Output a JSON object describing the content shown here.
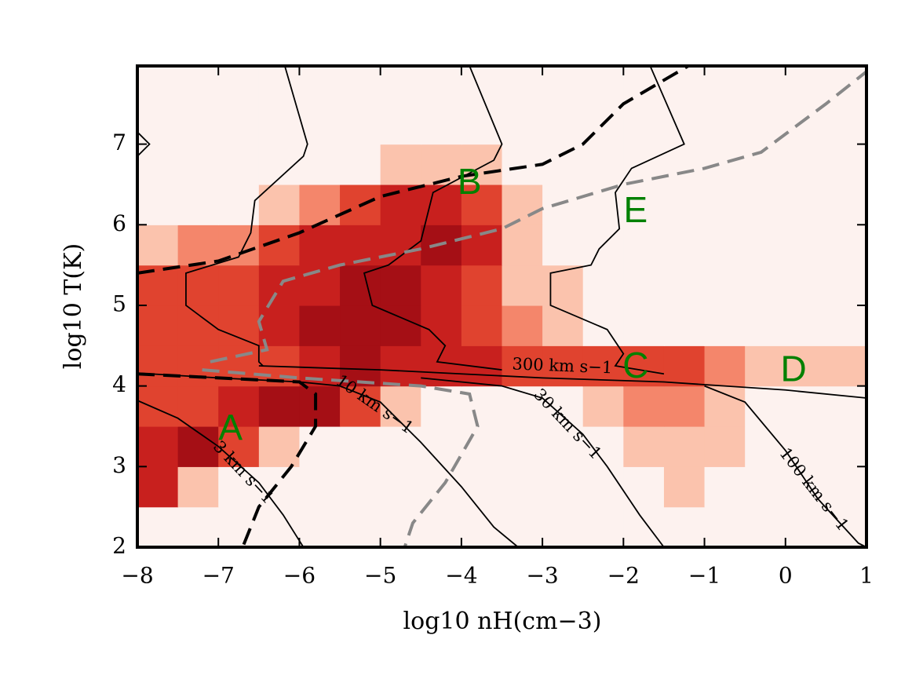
{
  "chart_data": {
    "type": "histogram2d",
    "x_label": "log10 nH(cm−3)",
    "y_label": "log10 T(K)",
    "xlim": [
      -8,
      1
    ],
    "ylim": [
      2,
      7.97
    ],
    "xticks": [
      {
        "value": -8,
        "label": "−8"
      },
      {
        "value": -7,
        "label": "−7"
      },
      {
        "value": -6,
        "label": "−6"
      },
      {
        "value": -5,
        "label": "−5"
      },
      {
        "value": -4,
        "label": "−4"
      },
      {
        "value": -3,
        "label": "−3"
      },
      {
        "value": -2,
        "label": "−2"
      },
      {
        "value": -1,
        "label": "−1"
      },
      0,
      1
    ],
    "yticks": [
      2,
      3,
      4,
      5,
      6,
      7
    ],
    "heatmap": {
      "colors": [
        "#fdf2ef",
        "#fbc3ad",
        "#f4866b",
        "#e0432f",
        "#c8201e",
        "#a50f15"
      ],
      "xbins": [
        -8,
        -7.5,
        -7,
        -6.5,
        -6,
        -5.5,
        -5,
        -4.5,
        -4,
        -3.5,
        -3,
        -2.5,
        -2,
        -1.5,
        -1,
        -0.5,
        0,
        0.5,
        1
      ],
      "ybins": [
        2,
        2.5,
        3,
        3.5,
        4,
        4.5,
        5,
        5.5,
        6,
        6.5,
        7,
        7.5,
        8
      ],
      "z": [
        [
          0,
          0,
          0,
          0,
          0,
          0,
          0,
          0,
          0,
          0,
          0,
          0,
          0,
          0,
          0,
          0,
          0,
          0
        ],
        [
          4,
          1,
          0,
          0,
          0,
          0,
          0,
          0,
          0,
          0,
          0,
          0,
          0,
          1,
          0,
          0,
          0,
          0
        ],
        [
          4,
          5,
          3,
          1,
          0,
          0,
          0,
          0,
          0,
          0,
          0,
          0,
          1,
          1,
          1,
          0,
          0,
          0
        ],
        [
          3,
          3,
          4,
          5,
          5,
          3,
          1,
          0,
          0,
          0,
          0,
          1,
          2,
          2,
          1,
          0,
          0,
          0
        ],
        [
          3,
          3,
          3,
          3,
          4,
          5,
          4,
          4,
          4,
          3,
          3,
          3,
          3,
          3,
          2,
          1,
          1,
          1
        ],
        [
          3,
          3,
          3,
          4,
          5,
          5,
          5,
          4,
          3,
          2,
          1,
          0,
          0,
          0,
          0,
          0,
          0,
          0
        ],
        [
          3,
          3,
          3,
          4,
          4,
          5,
          5,
          4,
          3,
          1,
          1,
          0,
          0,
          0,
          0,
          0,
          0,
          0
        ],
        [
          1,
          2,
          2,
          3,
          4,
          4,
          4,
          5,
          4,
          1,
          0,
          0,
          0,
          0,
          0,
          0,
          0,
          0
        ],
        [
          0,
          0,
          0,
          1,
          2,
          3,
          4,
          4,
          3,
          1,
          0,
          0,
          0,
          0,
          0,
          0,
          0,
          0
        ],
        [
          0,
          0,
          0,
          0,
          0,
          0,
          1,
          1,
          1,
          0,
          0,
          0,
          0,
          0,
          0,
          0,
          0,
          0
        ],
        [
          0,
          0,
          0,
          0,
          0,
          0,
          0,
          0,
          0,
          0,
          0,
          0,
          0,
          0,
          0,
          0,
          0,
          0
        ],
        [
          0,
          0,
          0,
          0,
          0,
          0,
          0,
          0,
          0,
          0,
          0,
          0,
          0,
          0,
          0,
          0,
          0,
          0
        ]
      ]
    },
    "contours": [
      {
        "label": "3 km s−1",
        "color": "#000000",
        "style": "solid",
        "x": [
          -8,
          -7.5,
          -7,
          -6.5,
          -6.2,
          -5.95
        ],
        "y": [
          3.82,
          3.6,
          3.25,
          2.8,
          2.4,
          2
        ]
      },
      {
        "label": "10 km s−1",
        "color": "#000000",
        "style": "solid",
        "x": [
          -8,
          -7,
          -6,
          -5.5,
          -5,
          -4.5,
          -4,
          -3.6,
          -3.3
        ],
        "y": [
          4.16,
          4.1,
          4.05,
          4.0,
          3.8,
          3.3,
          2.75,
          2.25,
          2
        ]
      },
      {
        "label": "30 km s−1",
        "color": "#000000",
        "style": "solid",
        "x": [
          -4.5,
          -3.5,
          -3,
          -2.5,
          -2.2,
          -1.8,
          -1.5
        ],
        "y": [
          4.1,
          4.0,
          3.85,
          3.4,
          3.0,
          2.4,
          2
        ]
      },
      {
        "label": "100 km s−1",
        "color": "#000000",
        "style": "solid",
        "x": [
          -1,
          -0.5,
          0,
          0.4,
          0.9,
          1
        ],
        "y": [
          4.0,
          3.8,
          3.2,
          2.6,
          2.05,
          2
        ]
      },
      {
        "label": "300 km s−1",
        "color": "#000000",
        "style": "solid",
        "x": [
          -6.5,
          -5,
          -4,
          -3,
          -1.5,
          0,
          1
        ],
        "y": [
          4.25,
          4.2,
          4.15,
          4.1,
          4.05,
          3.95,
          3.85
        ]
      },
      {
        "color": "#000000",
        "style": "solid",
        "x": [
          -6.18,
          -5.9,
          -5.95,
          -6.55,
          -6.6,
          -6.75,
          -7.4,
          -7.4,
          -7.0,
          -6.5,
          -6.5,
          -6.45
        ],
        "y": [
          7.97,
          7.0,
          6.85,
          6.3,
          5.9,
          5.6,
          5.4,
          5.0,
          4.7,
          4.5,
          4.3,
          4.25
        ]
      },
      {
        "color": "#000000",
        "style": "solid",
        "x": [
          -3.9,
          -3.5,
          -3.6,
          -4.35,
          -4.5,
          -4.9,
          -5.2,
          -5.1,
          -4.4,
          -4.2,
          -4.3,
          -3.5
        ],
        "y": [
          7.97,
          7.0,
          6.8,
          6.4,
          5.8,
          5.5,
          5.4,
          5.0,
          4.7,
          4.5,
          4.3,
          4.2
        ]
      },
      {
        "color": "#000000",
        "style": "solid",
        "x": [
          -1.67,
          -1.25,
          -1.9,
          -2.1,
          -2.05,
          -2.3,
          -2.4,
          -2.9,
          -2.9,
          -2.2,
          -2.0,
          -2.1,
          -1.5
        ],
        "y": [
          7.97,
          7.0,
          6.7,
          6.4,
          5.95,
          5.7,
          5.5,
          5.4,
          5.0,
          4.7,
          4.4,
          4.25,
          4.15
        ]
      },
      {
        "color": "#000000",
        "style": "solid",
        "x": [
          -8,
          -7.85,
          -8
        ],
        "y": [
          7.15,
          7.0,
          6.85
        ]
      },
      {
        "color": "#000000",
        "style": "dashed",
        "x": [
          -8,
          -7,
          -6,
          -5,
          -4,
          -3,
          -2.5,
          -2,
          -1.2
        ],
        "y": [
          5.4,
          5.55,
          5.9,
          6.35,
          6.6,
          6.75,
          7.0,
          7.5,
          7.97
        ]
      },
      {
        "color": "#000000",
        "style": "dashed",
        "x": [
          -8,
          -6,
          -5.8,
          -5.8,
          -6.1,
          -6.5,
          -6.7
        ],
        "y": [
          4.15,
          4.05,
          3.9,
          3.5,
          3.0,
          2.5,
          2.0
        ]
      },
      {
        "color": "#888888",
        "style": "dashed",
        "x": [
          -7.1,
          -6.4,
          -6.5,
          -6.2,
          -5.5,
          -4.5,
          -3.5,
          -3,
          -2,
          -1,
          -0.3,
          0.5,
          1
        ],
        "y": [
          4.3,
          4.45,
          4.8,
          5.3,
          5.5,
          5.7,
          5.95,
          6.2,
          6.5,
          6.7,
          6.9,
          7.5,
          7.9
        ]
      },
      {
        "color": "#888888",
        "style": "dashed",
        "x": [
          -7.2,
          -6,
          -4.5,
          -3.9,
          -3.8,
          -4.2,
          -4.6,
          -4.7
        ],
        "y": [
          4.2,
          4.1,
          4.0,
          3.9,
          3.5,
          2.8,
          2.3,
          2.0
        ]
      }
    ],
    "annotations": [
      {
        "text": "A",
        "x": -6.85,
        "y": 3.45
      },
      {
        "text": "B",
        "x": -3.9,
        "y": 6.5
      },
      {
        "text": "C",
        "x": -1.85,
        "y": 4.22
      },
      {
        "text": "D",
        "x": 0.1,
        "y": 4.18
      },
      {
        "text": "E",
        "x": -1.85,
        "y": 6.15
      }
    ]
  }
}
